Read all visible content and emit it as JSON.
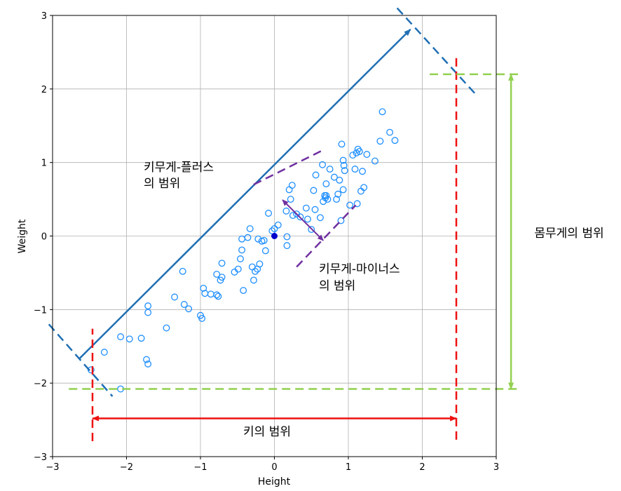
{
  "chart_data": {
    "type": "scatter",
    "xlabel": "Height",
    "ylabel": "Weight",
    "xlim": [
      -3,
      3
    ],
    "ylim": [
      -3,
      3
    ],
    "xticks": [
      -3,
      -2,
      -1,
      0,
      1,
      2,
      3
    ],
    "yticks": [
      -3,
      -2,
      -1,
      0,
      1,
      2,
      3
    ],
    "xtick_labels": [
      "−3",
      "−2",
      "−1",
      "0",
      "1",
      "2",
      "3"
    ],
    "ytick_labels": [
      "−3",
      "−2",
      "−1",
      "0",
      "1",
      "2",
      "3"
    ],
    "grid": true,
    "points": {
      "color": "#1f8fff",
      "x": [
        -2.48,
        -2.3,
        -2.08,
        -1.96,
        -1.8,
        -1.73,
        -1.71,
        -1.71,
        -1.71,
        -2.08,
        -1.46,
        -1.35,
        -1.24,
        -1.22,
        -1.16,
        -1.0,
        -0.98,
        -0.96,
        -0.94,
        -0.86,
        -0.78,
        -0.78,
        -0.76,
        -0.73,
        -0.71,
        -0.71,
        -0.54,
        -0.49,
        -0.46,
        -0.44,
        -0.44,
        -0.42,
        -0.36,
        -0.33,
        -0.3,
        -0.28,
        -0.26,
        -0.23,
        -0.22,
        -0.2,
        -0.17,
        -0.14,
        -0.12,
        -0.08,
        -0.03,
        0.0,
        0.05,
        0.17,
        0.17,
        0.16,
        0.2,
        0.22,
        0.24,
        0.25,
        0.3,
        0.35,
        0.43,
        0.45,
        0.5,
        0.53,
        0.55,
        0.56,
        0.62,
        0.65,
        0.66,
        0.68,
        0.69,
        0.7,
        0.7,
        0.72,
        0.75,
        0.81,
        0.84,
        0.86,
        0.88,
        0.9,
        0.91,
        0.93,
        0.93,
        0.94,
        0.95,
        1.02,
        1.06,
        1.09,
        1.11,
        1.12,
        1.13,
        1.15,
        1.17,
        1.19,
        1.21,
        1.25,
        1.36,
        1.43,
        1.46,
        1.56,
        1.63
      ],
      "y": [
        -1.82,
        -1.58,
        -1.37,
        -1.4,
        -1.39,
        -1.68,
        -1.74,
        -0.95,
        -1.04,
        -2.08,
        -1.25,
        -0.83,
        -0.48,
        -0.93,
        -0.99,
        -1.08,
        -1.12,
        -0.71,
        -0.78,
        -0.79,
        -0.52,
        -0.8,
        -0.82,
        -0.6,
        -0.56,
        -0.37,
        -0.49,
        -0.45,
        -0.31,
        -0.04,
        -0.19,
        -0.74,
        -0.02,
        0.1,
        -0.42,
        -0.6,
        -0.48,
        -0.45,
        -0.04,
        -0.38,
        -0.07,
        -0.06,
        -0.2,
        0.31,
        0.07,
        0.1,
        0.15,
        -0.13,
        -0.01,
        0.34,
        0.63,
        0.5,
        0.69,
        0.28,
        0.3,
        0.26,
        0.38,
        0.23,
        0.09,
        0.62,
        0.36,
        0.83,
        0.25,
        0.97,
        0.47,
        0.55,
        0.52,
        0.71,
        0.55,
        0.5,
        0.91,
        0.8,
        0.5,
        0.57,
        0.76,
        0.21,
        1.25,
        0.63,
        1.03,
        0.96,
        0.89,
        0.42,
        1.1,
        0.91,
        1.13,
        0.44,
        1.18,
        1.15,
        0.61,
        0.88,
        0.66,
        1.11,
        1.02,
        1.29,
        1.69,
        1.41,
        1.3
      ],
      "center": {
        "x": 0.0,
        "y": 0.0,
        "color": "#0000cc"
      }
    },
    "annotations": {
      "plus_range": {
        "label_line1": "키무게-플러스",
        "label_line2": "의 범위",
        "color": "#1f6fb4",
        "arrow": {
          "x1": -2.64,
          "y1": -1.67,
          "x2": 1.84,
          "y2": 2.81
        },
        "dashes": [
          {
            "x1": -3.05,
            "y1": -1.2,
            "x2": -2.19,
            "y2": -2.18
          },
          {
            "x1": 1.66,
            "y1": 3.1,
            "x2": 2.72,
            "y2": 1.93
          }
        ]
      },
      "minus_range": {
        "label_line1": "키무게-마이너스",
        "label_line2": "의 범위",
        "color": "#7030a0",
        "arrow": {
          "x1": 0.11,
          "y1": 0.49,
          "x2": 0.66,
          "y2": -0.06
        },
        "dashes": [
          {
            "x1": -0.28,
            "y1": 0.7,
            "x2": 0.68,
            "y2": 1.18
          },
          {
            "x1": 0.3,
            "y1": -0.42,
            "x2": 1.1,
            "y2": 0.42
          }
        ]
      },
      "height_range": {
        "label": "키의 범위",
        "color": "#ee1111",
        "arrow": {
          "x1": -2.46,
          "y1": -2.48,
          "x2": 2.46,
          "y2": -2.48
        },
        "vlines": [
          {
            "x": -2.46,
            "y1": -2.79,
            "y2": -1.26
          },
          {
            "x": 2.46,
            "y1": -2.77,
            "y2": 2.43
          }
        ]
      },
      "weight_range": {
        "label": "몸무게의 범위",
        "color": "#92d050",
        "arrow": {
          "x": 3.2,
          "y1": -2.08,
          "y2": 2.2
        },
        "hlines": [
          {
            "y": 2.2,
            "x1": 2.1,
            "x2": 3.33
          },
          {
            "y": -2.08,
            "x1": -2.78,
            "x2": 3.33
          }
        ]
      }
    }
  }
}
